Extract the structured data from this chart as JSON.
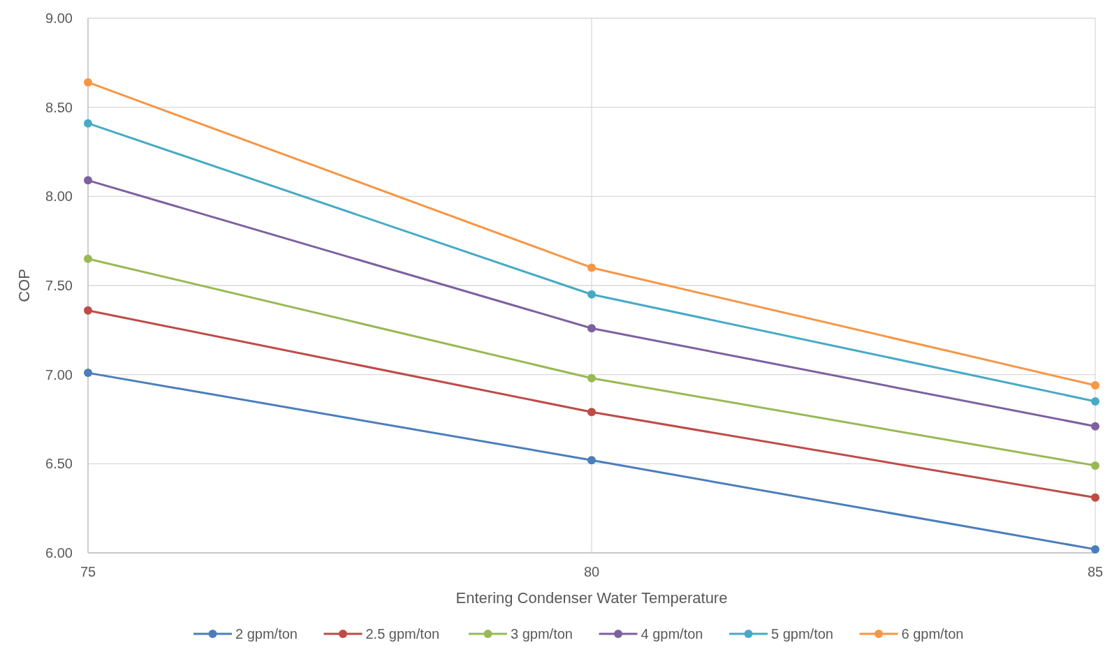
{
  "chart_data": {
    "type": "line",
    "xlabel": "Entering Condenser Water Temperature",
    "ylabel": "COP",
    "x": [
      75,
      80,
      85
    ],
    "xlim": [
      75,
      85
    ],
    "xticks": [
      75,
      80,
      85
    ],
    "ylim": [
      6,
      9
    ],
    "yticks": [
      {
        "value": 6,
        "label": "6.00"
      },
      {
        "value": 6.5,
        "label": "6.50"
      },
      {
        "value": 7,
        "label": "7.00"
      },
      {
        "value": 7.5,
        "label": "7.50"
      },
      {
        "value": 8,
        "label": "8.00"
      },
      {
        "value": 8.5,
        "label": "8.50"
      },
      {
        "value": 9,
        "label": "9.00"
      }
    ],
    "grid": true,
    "legend": "bottom",
    "marker": "circle",
    "line_style": "solid",
    "series": [
      {
        "name": "2 gpm/ton",
        "color": "#4a7ebb",
        "values": [
          7.01,
          6.52,
          6.02
        ]
      },
      {
        "name": "2.5 gpm/ton",
        "color": "#be4b48",
        "values": [
          7.36,
          6.79,
          6.31
        ]
      },
      {
        "name": "3 gpm/ton",
        "color": "#98b954",
        "values": [
          7.65,
          6.98,
          6.49
        ]
      },
      {
        "name": "4 gpm/ton",
        "color": "#7d60a0",
        "values": [
          8.09,
          7.26,
          6.71
        ]
      },
      {
        "name": "5 gpm/ton",
        "color": "#46aac5",
        "values": [
          8.41,
          7.45,
          6.85
        ]
      },
      {
        "name": "6 gpm/ton",
        "color": "#f79646",
        "values": [
          8.64,
          7.6,
          6.94
        ]
      }
    ]
  }
}
